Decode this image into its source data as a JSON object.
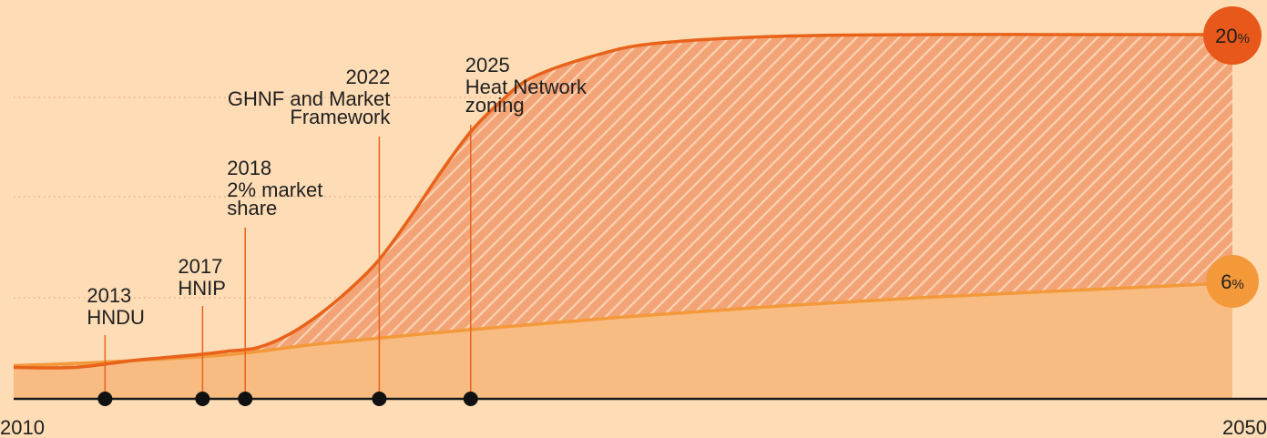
{
  "chart_data": {
    "type": "area",
    "x_start_label": "2010",
    "x_end_label": "2050",
    "xlim": [
      2010,
      2050
    ],
    "ylim": [
      0,
      25
    ],
    "grid": "dotted-horizontal",
    "series": [
      {
        "color": "#e8621a",
        "end_label_value": "20",
        "end_label_unit": "%",
        "points": [
          [
            2010,
            1.5
          ],
          [
            2012,
            1.5
          ],
          [
            2014,
            1.9
          ],
          [
            2016,
            2.2
          ],
          [
            2017,
            2.4
          ],
          [
            2018,
            2.6
          ],
          [
            2019,
            3.3
          ],
          [
            2020,
            4.4
          ],
          [
            2021,
            5.8
          ],
          [
            2022,
            7.5
          ],
          [
            2023,
            9.8
          ],
          [
            2024,
            12.3
          ],
          [
            2025,
            14.6
          ],
          [
            2026,
            16.3
          ],
          [
            2027,
            17.6
          ],
          [
            2029,
            18.8
          ],
          [
            2031,
            19.5
          ],
          [
            2035,
            19.9
          ],
          [
            2040,
            20.0
          ],
          [
            2045,
            20.0
          ],
          [
            2050,
            20.0
          ]
        ]
      },
      {
        "color": "#f3993a",
        "end_label_value": "6",
        "end_label_unit": "%",
        "points": [
          [
            2010,
            1.6
          ],
          [
            2013,
            1.8
          ],
          [
            2017,
            2.2
          ],
          [
            2020,
            2.8
          ],
          [
            2025,
            3.6
          ],
          [
            2030,
            4.3
          ],
          [
            2035,
            4.9
          ],
          [
            2040,
            5.4
          ],
          [
            2045,
            5.8
          ],
          [
            2050,
            6.2
          ]
        ]
      }
    ],
    "milestones": [
      {
        "year": "2013",
        "x": 2013,
        "label_lines": [
          "HNDU"
        ]
      },
      {
        "year": "2017",
        "x": 2016.2,
        "label_lines": [
          "HNIP"
        ]
      },
      {
        "year": "2018",
        "x": 2017.6,
        "label_lines": [
          "2% market",
          "share"
        ]
      },
      {
        "year": "2022",
        "x": 2022,
        "label_lines": [
          "GHNF and Market",
          "Framework"
        ]
      },
      {
        "year": "2025",
        "x": 2025,
        "label_lines": [
          "Heat Network",
          "zoning"
        ]
      }
    ]
  }
}
